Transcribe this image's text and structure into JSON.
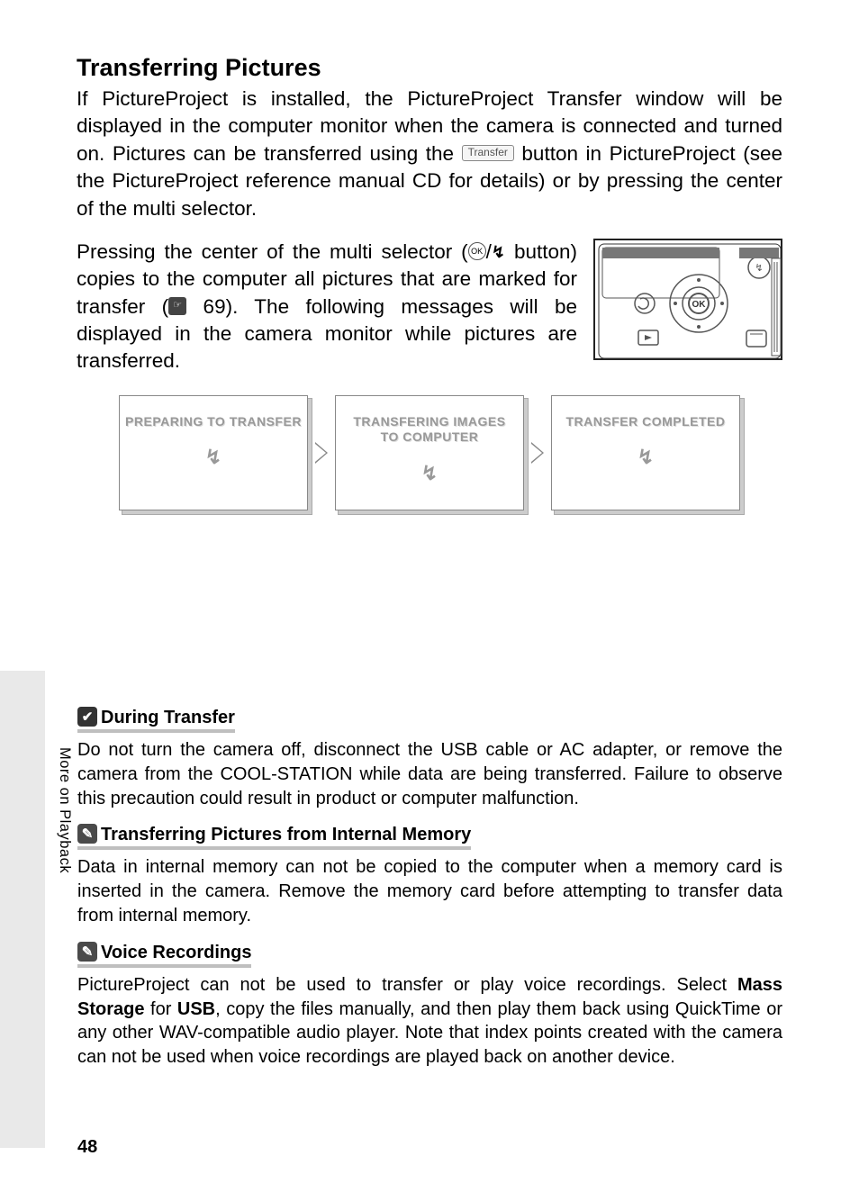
{
  "heading": "Transferring Pictures",
  "intro_before_btn": "If PictureProject is installed, the PictureProject Transfer window will be displayed in the computer monitor when the camera is connected and turned on.  Pictures can be transferred using the ",
  "transfer_btn_label": "Transfer",
  "intro_after_btn": " button in PictureProject (see the PictureProject reference manual CD for details) or by pressing the center of the multi selector.",
  "para2_a": "Pressing the center of the multi selector (",
  "ok_glyph": "OK",
  "slash": "/",
  "transfer_glyph": "↯",
  "para2_b": " button) copies to the computer all pictures that are marked for transfer (",
  "ref_icon_glyph": "☞",
  "ref_page": " 69).  The following messages will be displayed in the camera monitor while pictures are transferred.",
  "screens": [
    {
      "label_l1": "PREPARING TO TRANSFER",
      "label_l2": ""
    },
    {
      "label_l1": "TRANSFERING IMAGES",
      "label_l2": "TO COMPUTER"
    },
    {
      "label_l1": "TRANSFER COMPLETED",
      "label_l2": ""
    }
  ],
  "screen_icon": "↯",
  "side_label": "More on Playback",
  "notes": [
    {
      "icon": "✔",
      "icon_class": "check",
      "title": "During Transfer",
      "body": "Do not turn the camera off, disconnect the USB cable or AC adapter, or remove the camera from the COOL-STATION while data are being transferred.  Failure to observe this precaution could result in product or computer malfunction."
    },
    {
      "icon": "✎",
      "icon_class": "pen",
      "title": "Transferring Pictures from Internal Memory",
      "body": "Data in internal memory can not be copied to the computer when a memory card is inserted in the camera.  Remove the memory card before attempting to transfer data from internal memory."
    },
    {
      "icon": "✎",
      "icon_class": "pen",
      "title": "Voice Recordings",
      "body_html": "PictureProject can not be used to transfer or play voice recordings.  Select <b>Mass Storage</b> for <b>USB</b>, copy the files manually, and then play them back using QuickTime or any other WAV-compatible audio player.  Note that index points created with the camera can not be used when voice recordings are played back on another device."
    }
  ],
  "page_number": "48",
  "colors": {
    "tab_bg": "#e9e9e9",
    "underline": "#bfbfbf"
  }
}
